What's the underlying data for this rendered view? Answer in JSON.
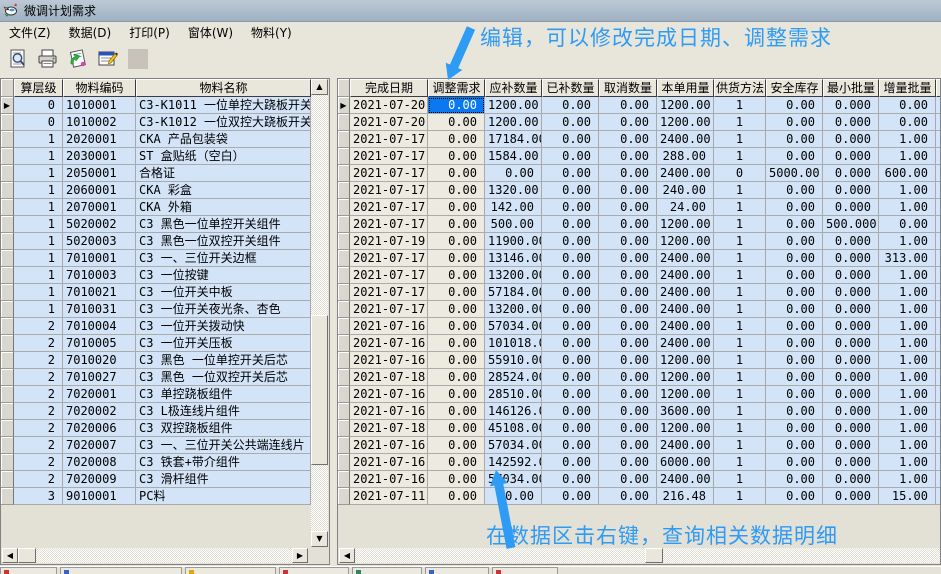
{
  "window": {
    "title": "微调计划需求"
  },
  "menu": {
    "items": [
      {
        "label": "文件(Z)"
      },
      {
        "label": "数据(D)"
      },
      {
        "label": "打印(P)"
      },
      {
        "label": "窗体(W)"
      },
      {
        "label": "物料(Y)"
      }
    ]
  },
  "toolbar": {
    "buttons": [
      {
        "name": "print-preview"
      },
      {
        "name": "print"
      },
      {
        "name": "refresh-data"
      },
      {
        "name": "edit-form"
      },
      {
        "name": "blank"
      }
    ]
  },
  "annotations": {
    "top_note": "编辑，可以修改完成日期、调整需求",
    "bottom_note": "在数据区击右键，查询相关数据明细",
    "accent_color": "#2E9BF5"
  },
  "colors": {
    "selection_bg": "#0A78F0",
    "cell_blue": "#D3E4F8",
    "cell_beige": "#EDEADF",
    "titlebar": "#A9B9C9"
  },
  "left_grid": {
    "headers": [
      "算层级",
      "物料编码",
      "物料名称"
    ],
    "rows": [
      [
        "0",
        "1010001",
        "C3-K1011 一位单控大跷板开关"
      ],
      [
        "0",
        "1010002",
        "C3-K1012 一位双控大跷板开关"
      ],
      [
        "1",
        "2020001",
        "CKA 产品包装袋"
      ],
      [
        "1",
        "2030001",
        "ST 盒贴纸（空白）"
      ],
      [
        "1",
        "2050001",
        "合格证"
      ],
      [
        "1",
        "2060001",
        "CKA 彩盒"
      ],
      [
        "1",
        "2070001",
        "CKA 外箱"
      ],
      [
        "1",
        "5020002",
        "C3 黑色一位单控开关组件"
      ],
      [
        "1",
        "5020003",
        "C3 黑色一位双控开关组件"
      ],
      [
        "1",
        "7010001",
        "C3 一、三位开关边框"
      ],
      [
        "1",
        "7010003",
        "C3 一位按键"
      ],
      [
        "1",
        "7010021",
        "C3 一位开关中板"
      ],
      [
        "1",
        "7010031",
        "C3 一位开关夜光条、杏色"
      ],
      [
        "2",
        "7010004",
        "C3 一位开关拨动快"
      ],
      [
        "2",
        "7010005",
        "C3 一位开关压板"
      ],
      [
        "2",
        "7010020",
        "C3 黑色 一位单控开关后芯"
      ],
      [
        "2",
        "7010027",
        "C3 黑色 一位双控开关后芯"
      ],
      [
        "2",
        "7020001",
        "C3 单控跷板组件"
      ],
      [
        "2",
        "7020002",
        "C3 L极连线片组件"
      ],
      [
        "2",
        "7020006",
        "C3 双控跷板组件"
      ],
      [
        "2",
        "7020007",
        "C3 一、三位开关公共端连线片"
      ],
      [
        "2",
        "7020008",
        "C3 铁套+带介组件"
      ],
      [
        "2",
        "7020009",
        "C3 滑杆组件"
      ],
      [
        "3",
        "9010001",
        "PC料"
      ]
    ]
  },
  "right_grid": {
    "headers": [
      "完成日期",
      "调整需求",
      "应补数量",
      "已补数量",
      "取消数量",
      "本单用量",
      "供货方法",
      "安全库存",
      "最小批量",
      "增量批量"
    ],
    "selected_cell": {
      "row": 0,
      "column": "调整需求",
      "value": "0.00"
    },
    "rows": [
      [
        "2021-07-20",
        "0.00",
        "1200.00",
        "0.00",
        "0.00",
        "1200.00",
        "1",
        "0.00",
        "0.000",
        "0.00"
      ],
      [
        "2021-07-20",
        "0.00",
        "1200.00",
        "0.00",
        "0.00",
        "1200.00",
        "1",
        "0.00",
        "0.000",
        "0.00"
      ],
      [
        "2021-07-17",
        "0.00",
        "17184.00",
        "0.00",
        "0.00",
        "2400.00",
        "1",
        "0.00",
        "0.000",
        "1.00"
      ],
      [
        "2021-07-17",
        "0.00",
        "1584.00",
        "0.00",
        "0.00",
        "288.00",
        "1",
        "0.00",
        "0.000",
        "1.00"
      ],
      [
        "2021-07-17",
        "0.00",
        "0.00",
        "0.00",
        "0.00",
        "2400.00",
        "0",
        "5000.00",
        "0.000",
        "600.00"
      ],
      [
        "2021-07-17",
        "0.00",
        "1320.00",
        "0.00",
        "0.00",
        "240.00",
        "1",
        "0.00",
        "0.000",
        "1.00"
      ],
      [
        "2021-07-17",
        "0.00",
        "142.00",
        "0.00",
        "0.00",
        "24.00",
        "1",
        "0.00",
        "0.000",
        "1.00"
      ],
      [
        "2021-07-17",
        "0.00",
        "500.00",
        "0.00",
        "0.00",
        "1200.00",
        "1",
        "0.00",
        "500.000",
        "0.00"
      ],
      [
        "2021-07-19",
        "0.00",
        "11900.00",
        "0.00",
        "0.00",
        "1200.00",
        "1",
        "0.00",
        "0.000",
        "1.00"
      ],
      [
        "2021-07-17",
        "0.00",
        "13146.00",
        "0.00",
        "0.00",
        "2400.00",
        "1",
        "0.00",
        "0.000",
        "313.00"
      ],
      [
        "2021-07-17",
        "0.00",
        "13200.00",
        "0.00",
        "0.00",
        "2400.00",
        "1",
        "0.00",
        "0.000",
        "1.00"
      ],
      [
        "2021-07-17",
        "0.00",
        "57184.00",
        "0.00",
        "0.00",
        "2400.00",
        "1",
        "0.00",
        "0.000",
        "1.00"
      ],
      [
        "2021-07-17",
        "0.00",
        "13200.00",
        "0.00",
        "0.00",
        "2400.00",
        "1",
        "0.00",
        "0.000",
        "1.00"
      ],
      [
        "2021-07-16",
        "0.00",
        "57034.00",
        "0.00",
        "0.00",
        "2400.00",
        "1",
        "0.00",
        "0.000",
        "1.00"
      ],
      [
        "2021-07-16",
        "0.00",
        "101018.00",
        "0.00",
        "0.00",
        "2400.00",
        "1",
        "0.00",
        "0.000",
        "1.00"
      ],
      [
        "2021-07-16",
        "0.00",
        "55910.00",
        "0.00",
        "0.00",
        "1200.00",
        "1",
        "0.00",
        "0.000",
        "1.00"
      ],
      [
        "2021-07-18",
        "0.00",
        "28524.00",
        "0.00",
        "0.00",
        "1200.00",
        "1",
        "0.00",
        "0.000",
        "1.00"
      ],
      [
        "2021-07-16",
        "0.00",
        "28510.00",
        "0.00",
        "0.00",
        "1200.00",
        "1",
        "0.00",
        "0.000",
        "1.00"
      ],
      [
        "2021-07-16",
        "0.00",
        "146126.00",
        "0.00",
        "0.00",
        "3600.00",
        "1",
        "0.00",
        "0.000",
        "1.00"
      ],
      [
        "2021-07-18",
        "0.00",
        "45108.00",
        "0.00",
        "0.00",
        "1200.00",
        "1",
        "0.00",
        "0.000",
        "1.00"
      ],
      [
        "2021-07-16",
        "0.00",
        "57034.00",
        "0.00",
        "0.00",
        "2400.00",
        "1",
        "0.00",
        "0.000",
        "1.00"
      ],
      [
        "2021-07-16",
        "0.00",
        "142592.00",
        "0.00",
        "0.00",
        "6000.00",
        "1",
        "0.00",
        "0.000",
        "1.00"
      ],
      [
        "2021-07-16",
        "0.00",
        "57034.00",
        "0.00",
        "0.00",
        "2400.00",
        "1",
        "0.00",
        "0.000",
        "1.00"
      ],
      [
        "2021-07-11",
        "0.00",
        "0.00",
        "0.00",
        "0.00",
        "216.48",
        "1",
        "0.00",
        "0.000",
        "15.00"
      ]
    ]
  }
}
